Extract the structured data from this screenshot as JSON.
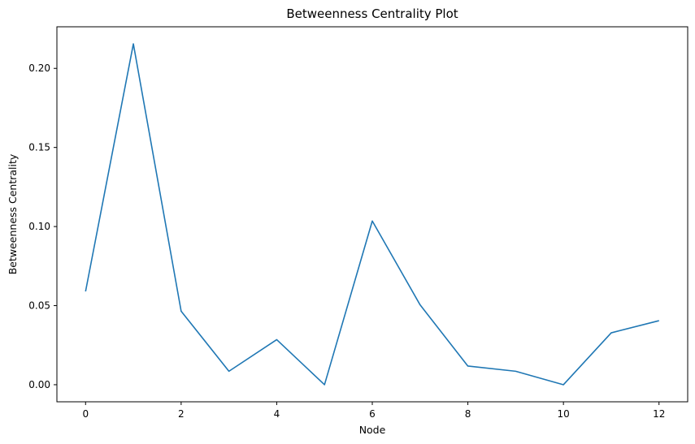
{
  "chart_data": {
    "type": "line",
    "title": "Betweenness Centrality Plot",
    "xlabel": "Node",
    "ylabel": "Betweenness Centrality",
    "x": [
      0,
      1,
      2,
      3,
      4,
      5,
      6,
      7,
      8,
      9,
      10,
      11,
      12
    ],
    "series": [
      {
        "values": [
          0.059,
          0.2155,
          0.0465,
          0.0085,
          0.0285,
          0.0,
          0.1035,
          0.0505,
          0.0118,
          0.0085,
          0.0,
          0.0328,
          0.0405
        ],
        "color": "#1f77b4"
      }
    ],
    "xlim": [
      -0.6,
      12.6
    ],
    "ylim": [
      -0.0108,
      0.2263
    ],
    "xticks": [
      "0",
      "2",
      "4",
      "6",
      "8",
      "10",
      "12"
    ],
    "yticks": [
      "0.00",
      "0.05",
      "0.10",
      "0.15",
      "0.20"
    ],
    "grid": false,
    "legend": "none"
  }
}
